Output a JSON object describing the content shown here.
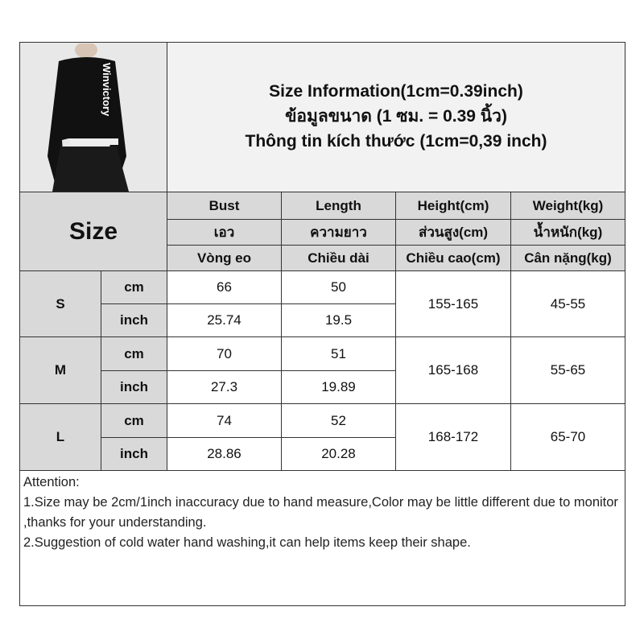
{
  "title": {
    "line1": "Size Information(1cm=0.39inch)",
    "line2": "ข้อมูลขนาด (1 ซม. = 0.39 นิ้ว)",
    "line3": "Thông tin kích thước (1cm=0,39 inch)"
  },
  "photo": {
    "brand_text": "Winvictory"
  },
  "size_label": "Size",
  "headers": [
    [
      "Bust",
      "Length",
      "Height(cm)",
      "Weight(kg)"
    ],
    [
      "เอว",
      "ความยาว",
      "ส่วนสูง(cm)",
      "น้ำหนัก(kg)"
    ],
    [
      "Vòng eo",
      "Chiều dài",
      "Chiều cao(cm)",
      "Cân nặng(kg)"
    ]
  ],
  "rows": [
    {
      "size": "S",
      "cm_label": "cm",
      "inch_label": "inch",
      "bust_cm": "66",
      "bust_inch": "25.74",
      "length_cm": "50",
      "length_inch": "19.5",
      "height": "155-165",
      "weight": "45-55"
    },
    {
      "size": "M",
      "cm_label": "cm",
      "inch_label": "inch",
      "bust_cm": "70",
      "bust_inch": "27.3",
      "length_cm": "51",
      "length_inch": "19.89",
      "height": "165-168",
      "weight": "55-65"
    },
    {
      "size": "L",
      "cm_label": "cm",
      "inch_label": "inch",
      "bust_cm": "74",
      "bust_inch": "28.86",
      "length_cm": "52",
      "length_inch": "20.28",
      "height": "168-172",
      "weight": "65-70"
    }
  ],
  "attention": {
    "heading": "Attention:",
    "note1": "1.Size may be 2cm/1inch inaccuracy due to hand measure,Color may be little different due to monitor ,thanks for your understanding.",
    "note2": "2.Suggestion of cold water hand washing,it can help items keep their shape."
  }
}
